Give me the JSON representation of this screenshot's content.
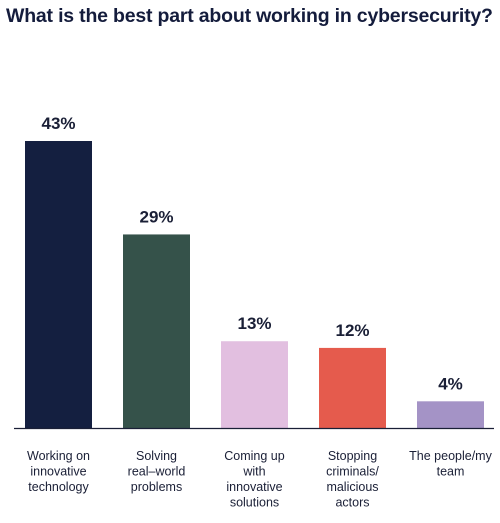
{
  "chart_data": {
    "type": "bar",
    "title": "What is the best part about working in cybersecurity?",
    "categories": [
      "Working on innovative technology",
      "Solving real-world problems",
      "Coming up with innovative solutions",
      "Stopping criminals/ malicious actors",
      "The people/my team"
    ],
    "category_lines": [
      [
        "Working on",
        "innovative",
        "technology"
      ],
      [
        "Solving",
        "real–world",
        "problems"
      ],
      [
        "Coming up",
        "with",
        "innovative",
        "solutions"
      ],
      [
        "Stopping",
        "criminals/",
        "malicious",
        "actors"
      ],
      [
        "The people/my",
        "team"
      ]
    ],
    "values": [
      43,
      29,
      13,
      12,
      4
    ],
    "value_labels": [
      "43%",
      "29%",
      "13%",
      "12%",
      "4%"
    ],
    "colors": [
      "#141f40",
      "#35524a",
      "#e2bfe0",
      "#e55b4d",
      "#a493c6"
    ],
    "ylim": [
      0,
      43
    ],
    "xlabel": "",
    "ylabel": "",
    "grid": false,
    "legend": "none"
  }
}
